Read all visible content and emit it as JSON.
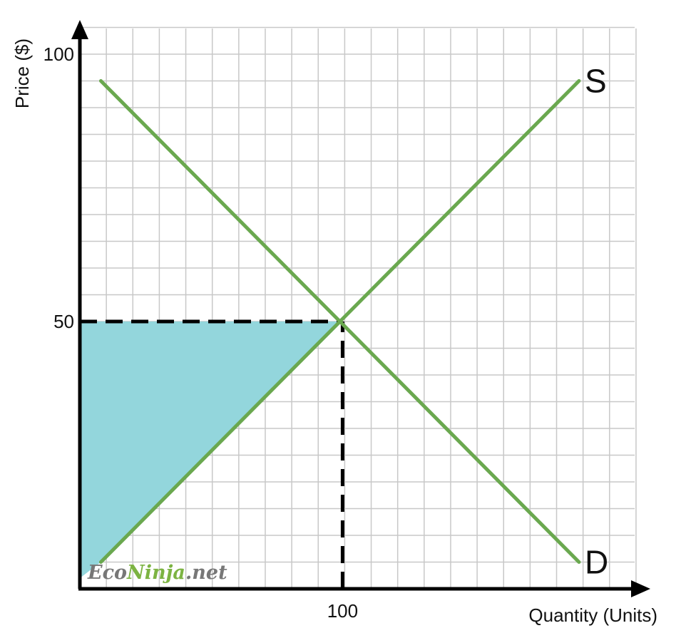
{
  "chart_data": {
    "type": "line",
    "xlabel": "Quantity (Units)",
    "ylabel": "Price ($)",
    "x_ticks": [
      {
        "value": 100,
        "label": "100"
      }
    ],
    "y_ticks": [
      {
        "value": 50,
        "label": "50"
      },
      {
        "value": 100,
        "label": "100"
      }
    ],
    "xlim": [
      0,
      210
    ],
    "ylim": [
      0,
      105
    ],
    "grid": true,
    "series": [
      {
        "name": "S",
        "color": "#6aa84f",
        "points": [
          [
            8,
            5
          ],
          [
            190,
            95
          ]
        ]
      },
      {
        "name": "D",
        "color": "#6aa84f",
        "points": [
          [
            8,
            95
          ],
          [
            190,
            5
          ]
        ]
      }
    ],
    "equilibrium": {
      "x": 100,
      "y": 50
    },
    "guide_lines": [
      {
        "from": [
          0,
          50
        ],
        "to": [
          100,
          50
        ],
        "style": "dashed"
      },
      {
        "from": [
          100,
          0
        ],
        "to": [
          100,
          50
        ],
        "style": "dashed"
      }
    ],
    "shaded_region": {
      "label": "",
      "color": "#93d6dc",
      "polygon": [
        [
          0,
          50
        ],
        [
          100,
          50
        ],
        [
          8,
          5
        ],
        [
          0,
          2
        ],
        [
          0,
          50
        ]
      ]
    },
    "colors": {
      "curves": "#6aa84f",
      "grid": "#c8c8c8",
      "axes": "#000000",
      "shade": "#93d6dc"
    }
  },
  "watermark": {
    "prefix": "Eco",
    "middle": "Ninja",
    "suffix": ".net",
    "prefix_color": "#777777",
    "middle_color": "#7cb342",
    "suffix_color": "#777777"
  }
}
